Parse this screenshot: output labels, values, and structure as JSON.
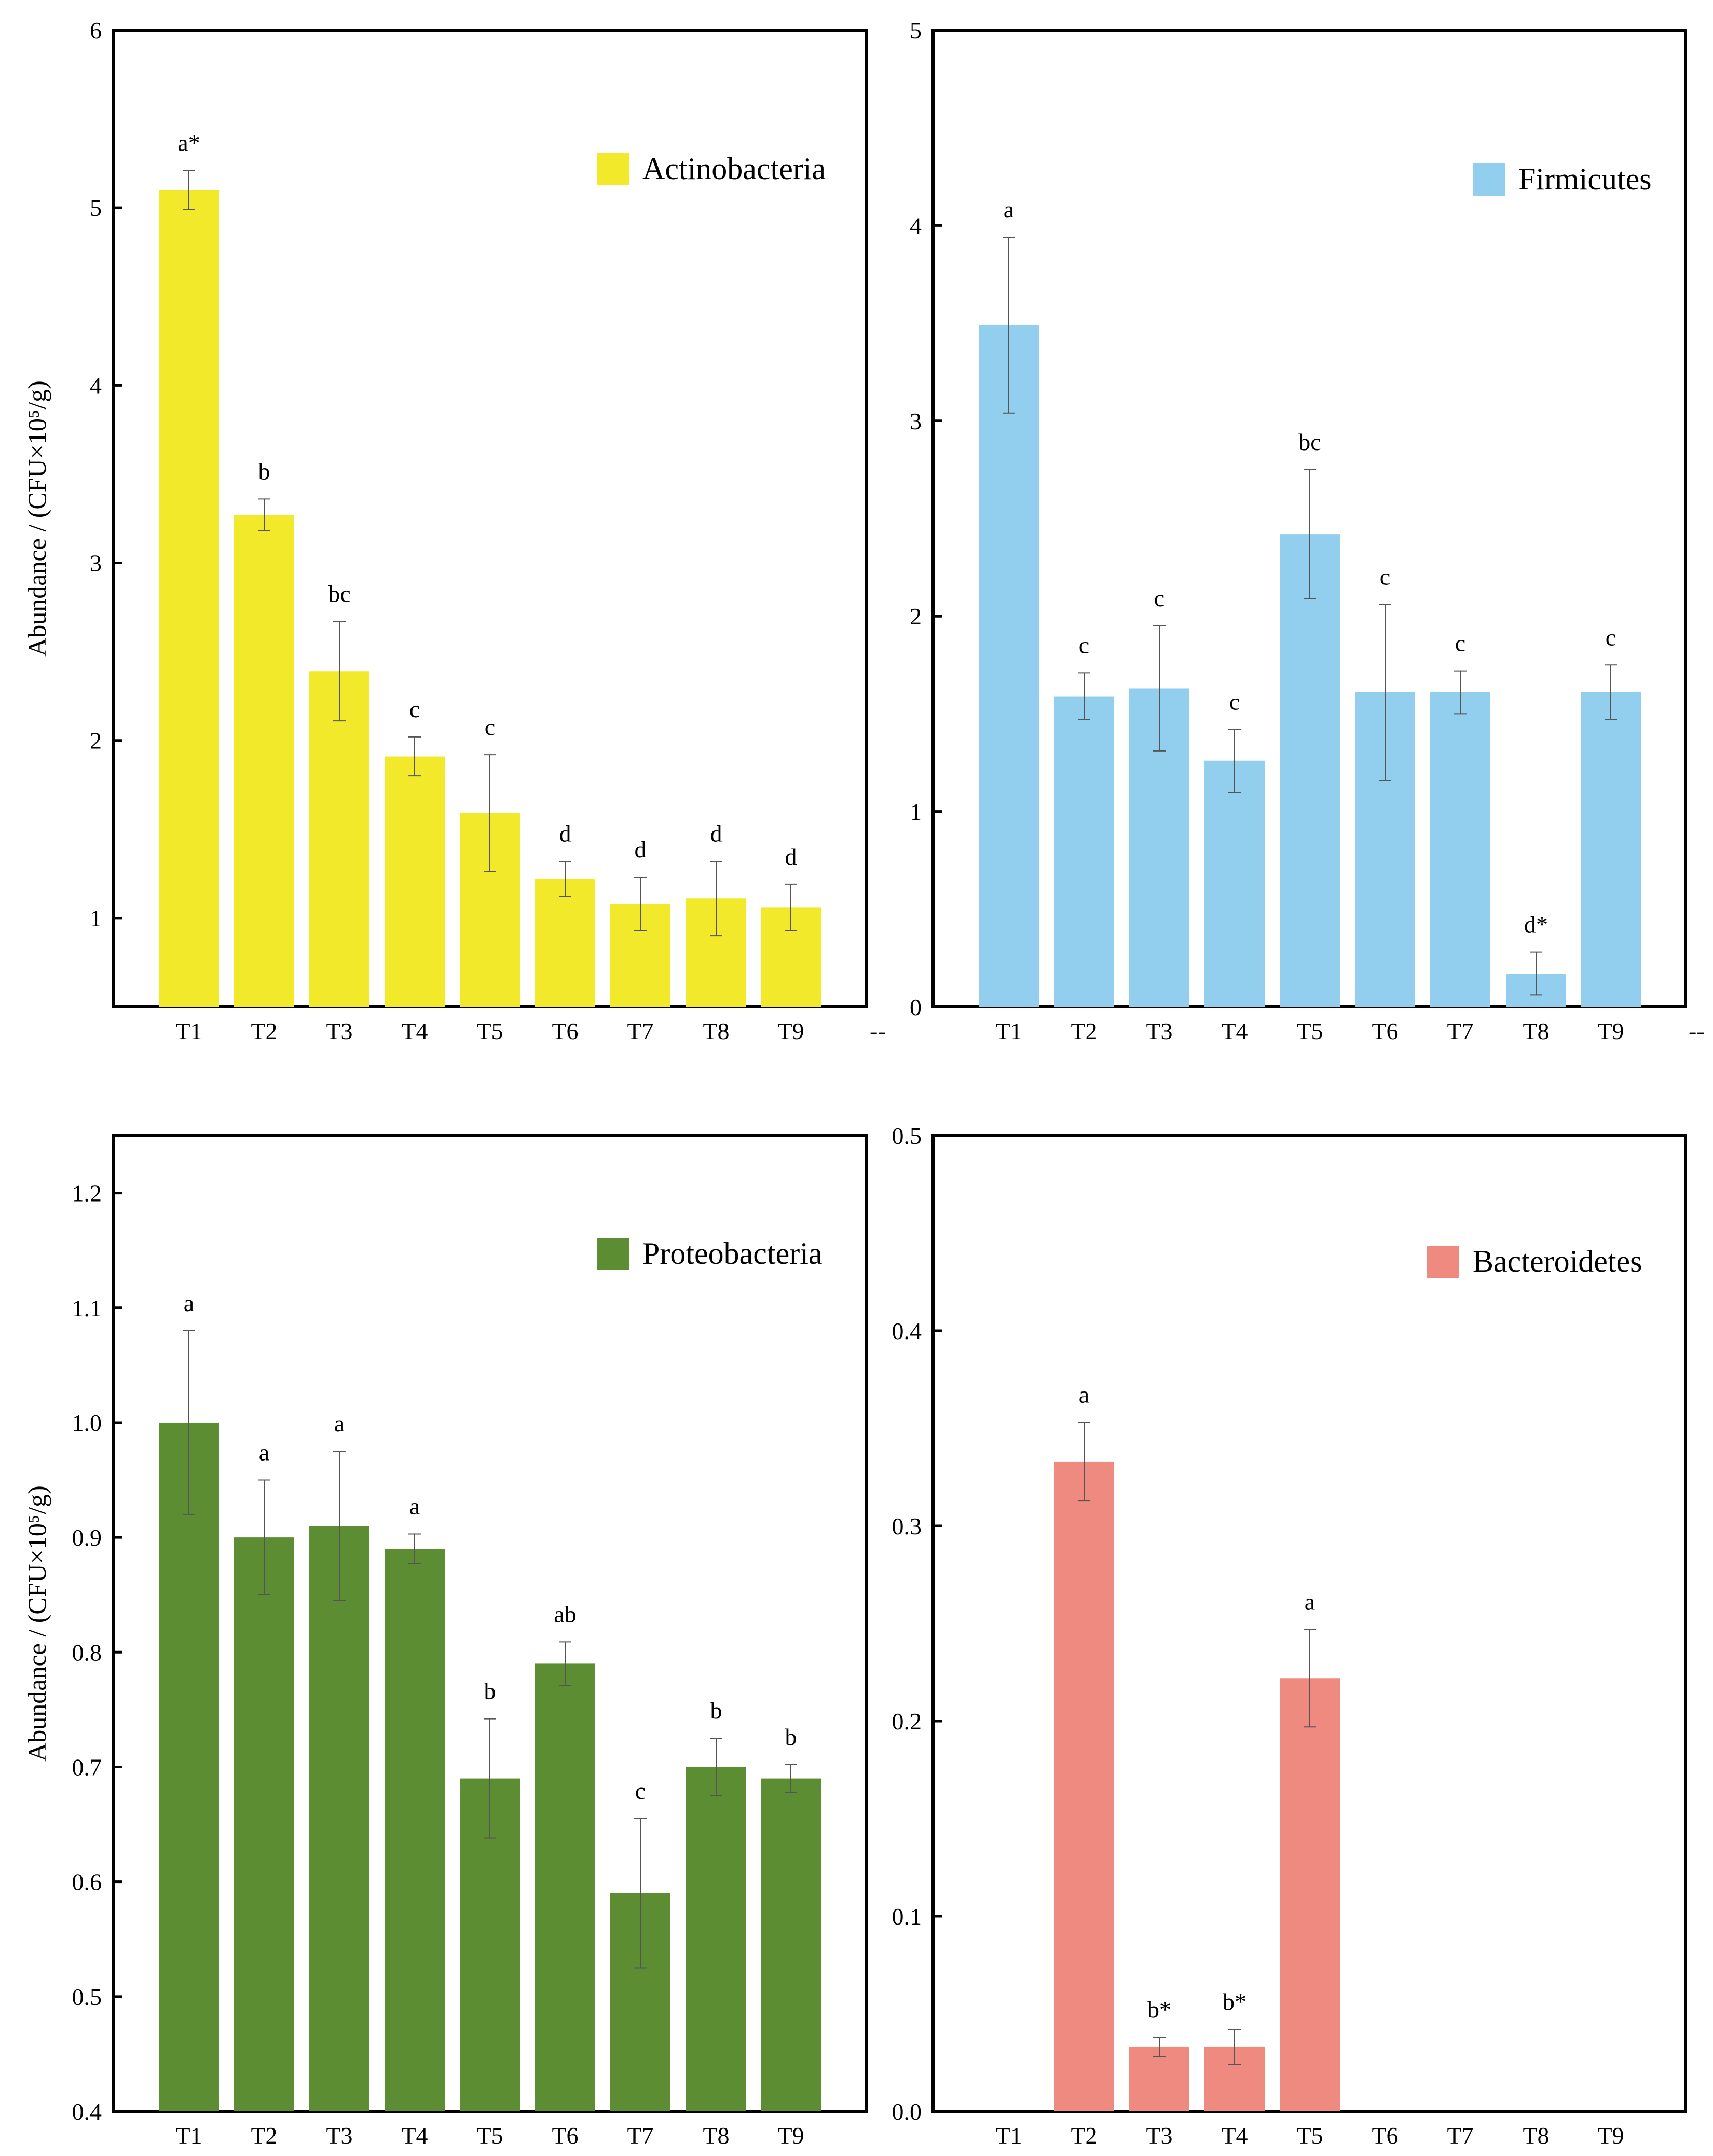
{
  "chart_data": [
    {
      "type": "bar",
      "legend": "Actinobacteria",
      "legend_position": "top-right",
      "color": "#F1E92A",
      "categories": [
        "T1",
        "T2",
        "T3",
        "T4",
        "T5",
        "T6",
        "T7",
        "T8",
        "T9"
      ],
      "values": [
        5.1,
        3.27,
        2.39,
        1.91,
        1.59,
        1.22,
        1.08,
        1.11,
        1.06
      ],
      "errors": [
        0.11,
        0.09,
        0.28,
        0.11,
        0.33,
        0.1,
        0.15,
        0.21,
        0.13
      ],
      "letters": [
        "a*",
        "b",
        "bc",
        "c",
        "c",
        "d",
        "d",
        "d",
        "d"
      ],
      "ylim": [
        0.5,
        6
      ],
      "yticks": [
        "1",
        "2",
        "3",
        "4",
        "5",
        "6"
      ],
      "yticks_val": [
        1,
        2,
        3,
        4,
        5,
        6
      ],
      "ylabel": "Abundance / (CFU×10⁵/g)",
      "trailing_label": "--"
    },
    {
      "type": "bar",
      "legend": "Firmicutes",
      "legend_position": "top-right",
      "color": "#92CFEF",
      "categories": [
        "T1",
        "T2",
        "T3",
        "T4",
        "T5",
        "T6",
        "T7",
        "T8",
        "T9"
      ],
      "values": [
        3.49,
        1.59,
        1.63,
        1.26,
        2.42,
        1.61,
        1.61,
        0.17,
        1.61
      ],
      "errors": [
        0.45,
        0.12,
        0.32,
        0.16,
        0.33,
        0.45,
        0.11,
        0.11,
        0.14
      ],
      "letters": [
        "a",
        "c",
        "c",
        "c",
        "bc",
        "c",
        "c",
        "d*",
        "c"
      ],
      "ylim": [
        0,
        5
      ],
      "yticks": [
        "0",
        "1",
        "2",
        "3",
        "4",
        "5"
      ],
      "yticks_val": [
        0,
        1,
        2,
        3,
        4,
        5
      ],
      "ylabel": "",
      "trailing_label": "--"
    },
    {
      "type": "bar",
      "legend": "Proteobacteria",
      "legend_position": "top-right",
      "color": "#5C8D33",
      "categories": [
        "T1",
        "T2",
        "T3",
        "T4",
        "T5",
        "T6",
        "T7",
        "T8",
        "T9"
      ],
      "values": [
        1.0,
        0.9,
        0.91,
        0.89,
        0.69,
        0.79,
        0.59,
        0.7,
        0.69
      ],
      "errors": [
        0.08,
        0.05,
        0.065,
        0.013,
        0.052,
        0.019,
        0.065,
        0.025,
        0.012
      ],
      "letters": [
        "a",
        "a",
        "a",
        "a",
        "b",
        "ab",
        "c",
        "b",
        "b"
      ],
      "ylim": [
        0.4,
        1.25
      ],
      "yticks": [
        "0.4",
        "0.5",
        "0.6",
        "0.7",
        "0.8",
        "0.9",
        "1.0",
        "1.1",
        "1.2"
      ],
      "yticks_val": [
        0.4,
        0.5,
        0.6,
        0.7,
        0.8,
        0.9,
        1.0,
        1.1,
        1.2
      ],
      "ylabel": "Abundance / (CFU×10⁵/g)",
      "trailing_label": ""
    },
    {
      "type": "bar",
      "legend": "Bacteroidetes",
      "legend_position": "top-right",
      "color": "#EF8A80",
      "categories": [
        "T1",
        "T2",
        "T3",
        "T4",
        "T5",
        "T6",
        "T7",
        "T8",
        "T9"
      ],
      "values": [
        0,
        0.333,
        0.033,
        0.033,
        0.222,
        0,
        0,
        0,
        0
      ],
      "errors": [
        0,
        0.02,
        0.005,
        0.009,
        0.025,
        0,
        0,
        0,
        0
      ],
      "letters": [
        "",
        "a",
        "b*",
        "b*",
        "a",
        "",
        "",
        "",
        ""
      ],
      "ylim": [
        0,
        0.5
      ],
      "yticks": [
        "0.0",
        "0.1",
        "0.2",
        "0.3",
        "0.4",
        "0.5"
      ],
      "yticks_val": [
        0,
        0.1,
        0.2,
        0.3,
        0.4,
        0.5
      ],
      "ylabel": "",
      "trailing_label": ""
    }
  ]
}
